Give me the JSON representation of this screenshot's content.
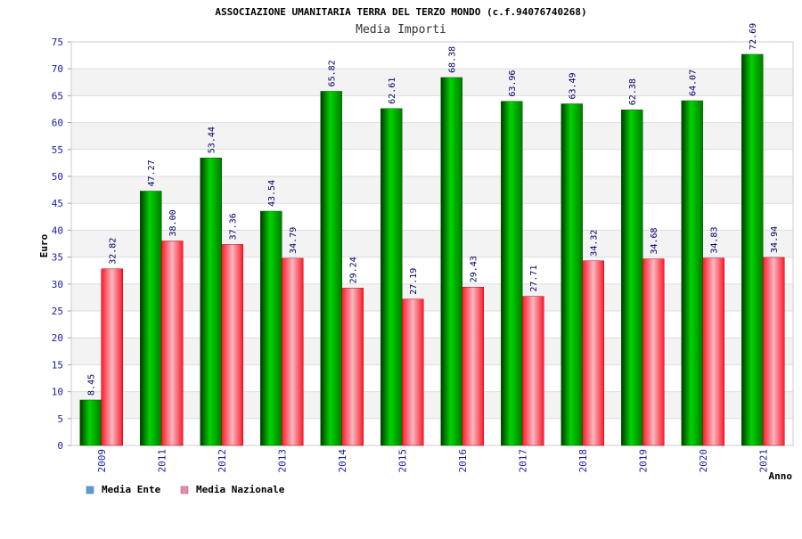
{
  "chart_data": {
    "type": "bar",
    "title": "ASSOCIAZIONE UMANITARIA TERRA DEL TERZO MONDO (c.f.94076740268)",
    "subtitle": "Media Importi",
    "xlabel": "Anno",
    "ylabel": "Euro",
    "ylim": [
      0,
      75
    ],
    "yticks": [
      0,
      5,
      10,
      15,
      20,
      25,
      30,
      35,
      40,
      45,
      50,
      55,
      60,
      65,
      70,
      75
    ],
    "grid": true,
    "legend_position": "bottom-left",
    "categories": [
      "2009",
      "2011",
      "2012",
      "2013",
      "2014",
      "2015",
      "2016",
      "2017",
      "2018",
      "2019",
      "2020",
      "2021"
    ],
    "series": [
      {
        "name": "Media Ente",
        "legend_color": "#5b9bd5",
        "bar_color": "#00c000",
        "values": [
          8.45,
          47.27,
          53.44,
          43.54,
          65.82,
          62.61,
          68.38,
          63.96,
          63.49,
          62.38,
          64.07,
          72.69
        ],
        "labels": [
          "8.45",
          "47.27",
          "53.44",
          "43.54",
          "65.82",
          "62.61",
          "68.38",
          "63.96",
          "63.49",
          "62.38",
          "64.07",
          "72.69"
        ]
      },
      {
        "name": "Media Nazionale",
        "legend_color": "#e88aa8",
        "bar_color": "#e0303a",
        "values": [
          32.82,
          38.0,
          37.36,
          34.79,
          29.24,
          27.19,
          29.43,
          27.71,
          34.32,
          34.68,
          34.83,
          34.94
        ],
        "labels": [
          "32.82",
          "38.00",
          "37.36",
          "34.79",
          "29.24",
          "27.19",
          "29.43",
          "27.71",
          "34.32",
          "34.68",
          "34.83",
          "34.94"
        ]
      }
    ]
  }
}
